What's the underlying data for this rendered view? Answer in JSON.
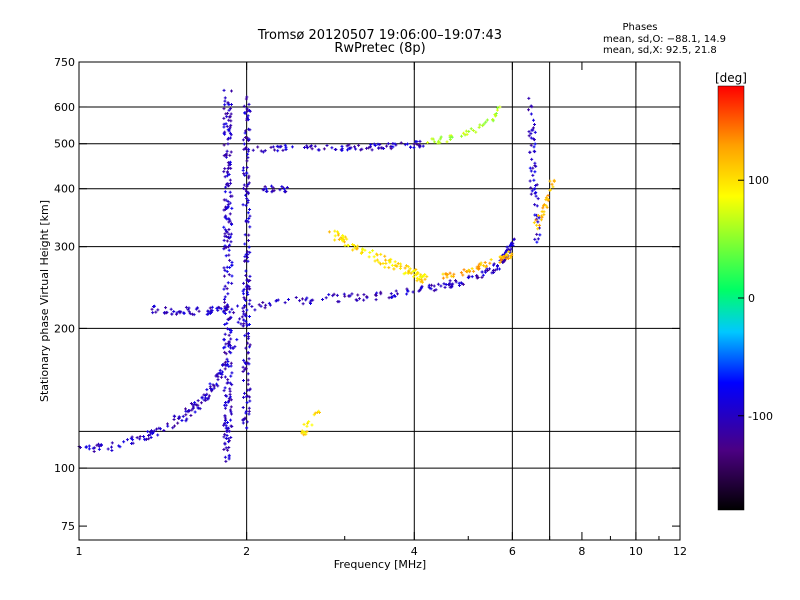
{
  "header": {
    "title_line1": "Tromsø 20120507 19:06:00–19:07:43",
    "title_line2": "RwPretec (8p)",
    "stats_heading": "Phases",
    "stats_line1": "mean, sd,O: −88.1, 14.9",
    "stats_line2": "mean, sd,X:  92.5, 21.8"
  },
  "chart_data": {
    "type": "scatter",
    "xlabel": "Frequency [MHz]",
    "ylabel": "Stationary phase Virtual Height [km]",
    "x_scale": "log",
    "y_scale": "log",
    "xlim": [
      1,
      12
    ],
    "ylim": [
      70,
      750
    ],
    "x_ticks": [
      1,
      2,
      4,
      6,
      8,
      10,
      12
    ],
    "x_tick_labels": [
      "1",
      "2",
      "4",
      "6",
      "8",
      "10",
      "12"
    ],
    "y_ticks": [
      75,
      100,
      200,
      300,
      400,
      500,
      600,
      750
    ],
    "y_tick_labels": [
      "75",
      "100",
      "200",
      "300",
      "400",
      "500",
      "600",
      "750"
    ],
    "grid": true,
    "grid_x": [
      2,
      4,
      6,
      7,
      10
    ],
    "grid_y": [
      100,
      120,
      200,
      300,
      400,
      500,
      600
    ],
    "colorbar": {
      "label": "[deg]",
      "range": [
        -180,
        180
      ],
      "ticks": [
        100,
        0,
        -100
      ],
      "tick_labels": [
        "100",
        "0",
        "-100"
      ],
      "colors": [
        "#000000",
        "#4b0082",
        "#0000ff",
        "#00c8ff",
        "#00ff64",
        "#ffff00",
        "#ffa000",
        "#ff0000"
      ]
    },
    "traces": [
      {
        "x": [
          1.0,
          1.1,
          1.3,
          1.45,
          1.55,
          1.65,
          1.75,
          1.85,
          2.0
        ],
        "y": [
          112,
          110,
          116,
          123,
          130,
          138,
          150,
          175,
          220
        ],
        "phase": -100,
        "spread": 0.03,
        "n": 140
      },
      {
        "x": [
          1.35,
          1.5,
          1.7,
          1.95,
          2.3,
          2.8,
          3.4,
          4.0,
          4.6,
          5.2,
          5.6,
          5.85,
          6.0
        ],
        "y": [
          220,
          218,
          218,
          220,
          228,
          232,
          235,
          240,
          248,
          258,
          270,
          285,
          310
        ],
        "phase": -100,
        "spread": 0.025,
        "n": 230
      },
      {
        "x": [
          2.0,
          2.4,
          2.9,
          3.4,
          3.8,
          4.2
        ],
        "y": [
          485,
          490,
          490,
          492,
          495,
          500
        ],
        "phase": -100,
        "spread": 0.02,
        "n": 90
      },
      {
        "x": [
          4.2,
          4.6,
          5.0,
          5.4,
          5.7
        ],
        "y": [
          505,
          512,
          530,
          555,
          600
        ],
        "phase": 60,
        "spread": 0.02,
        "n": 40
      },
      {
        "x": [
          2.1,
          2.4
        ],
        "y": [
          400,
          398
        ],
        "phase": -100,
        "spread": 0.02,
        "n": 20
      },
      {
        "x": [
          2.85,
          3.1,
          3.4,
          3.7,
          4.0,
          4.2
        ],
        "y": [
          320,
          300,
          285,
          272,
          262,
          255
        ],
        "phase": 100,
        "spread": 0.03,
        "n": 110
      },
      {
        "x": [
          4.5,
          4.8,
          5.1,
          5.4,
          5.7,
          6.0
        ],
        "y": [
          258,
          262,
          268,
          275,
          282,
          290
        ],
        "phase": 120,
        "spread": 0.02,
        "n": 60
      },
      {
        "x": [
          6.5,
          6.5,
          6.55,
          6.6,
          6.7
        ],
        "y": [
          620,
          500,
          420,
          360,
          300
        ],
        "phase": -95,
        "spread": 0.03,
        "n": 60
      },
      {
        "x": [
          6.6,
          6.8,
          7.0,
          7.1
        ],
        "y": [
          330,
          360,
          390,
          420
        ],
        "phase": 120,
        "spread": 0.02,
        "n": 30
      },
      {
        "x": [
          2.5,
          2.6,
          2.7
        ],
        "y": [
          118,
          126,
          136
        ],
        "phase": 100,
        "spread": 0.03,
        "n": 18
      },
      {
        "x": [
          1.85,
          1.85
        ],
        "y": [
          105,
          640
        ],
        "phase": -100,
        "spread": 0.035,
        "n": 260
      },
      {
        "x": [
          2.0,
          2.0
        ],
        "y": [
          120,
          640
        ],
        "phase": -100,
        "spread": 0.03,
        "n": 170
      }
    ]
  }
}
